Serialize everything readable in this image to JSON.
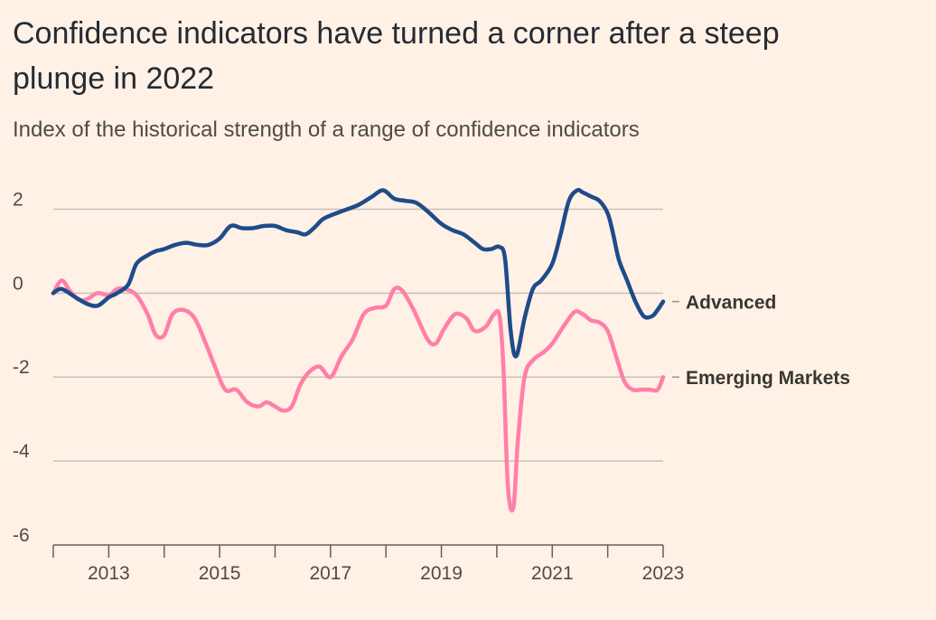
{
  "colors": {
    "background": "#fff1e5",
    "gridline": "#c8c0b8",
    "axis": "#66605c",
    "advanced": "#1f4b8a",
    "emerging": "#ff7faa"
  },
  "chart_data": {
    "type": "line",
    "title": "Confidence indicators have turned a corner after a steep plunge in 2022",
    "subtitle": "Index of the historical strength of a range of confidence indicators",
    "xlabel": "",
    "ylabel": "",
    "xlim": [
      2012.0,
      2023.0
    ],
    "ylim": [
      -6,
      3
    ],
    "y_ticks": [
      2,
      0,
      -2,
      -4,
      -6
    ],
    "x_ticks": [
      2013,
      2015,
      2017,
      2019,
      2021,
      2023
    ],
    "x_minor_ticks": [
      2012,
      2013,
      2014,
      2015,
      2016,
      2017,
      2018,
      2019,
      2020,
      2021,
      2022,
      2023
    ],
    "grid": true,
    "legend": "inline labels at right end of lines",
    "series": [
      {
        "name": "Advanced",
        "x": [
          2012.0,
          2012.15,
          2012.4,
          2012.6,
          2012.8,
          2013.0,
          2013.15,
          2013.35,
          2013.5,
          2013.7,
          2013.85,
          2014.0,
          2014.2,
          2014.4,
          2014.6,
          2014.8,
          2015.0,
          2015.2,
          2015.4,
          2015.6,
          2015.8,
          2016.0,
          2016.2,
          2016.4,
          2016.55,
          2016.7,
          2016.85,
          2017.0,
          2017.2,
          2017.5,
          2017.75,
          2017.95,
          2018.15,
          2018.35,
          2018.55,
          2018.75,
          2019.0,
          2019.2,
          2019.4,
          2019.6,
          2019.75,
          2019.9,
          2020.05,
          2020.15,
          2020.25,
          2020.35,
          2020.5,
          2020.65,
          2020.8,
          2021.0,
          2021.15,
          2021.3,
          2021.45,
          2021.55,
          2021.7,
          2021.85,
          2022.0,
          2022.1,
          2022.2,
          2022.35,
          2022.5,
          2022.65,
          2022.8,
          2022.9,
          2023.0
        ],
        "values": [
          0.0,
          0.1,
          -0.1,
          -0.25,
          -0.3,
          -0.1,
          0.0,
          0.2,
          0.7,
          0.9,
          1.0,
          1.05,
          1.15,
          1.2,
          1.15,
          1.15,
          1.3,
          1.6,
          1.55,
          1.55,
          1.6,
          1.6,
          1.5,
          1.45,
          1.4,
          1.55,
          1.75,
          1.85,
          1.95,
          2.1,
          2.3,
          2.45,
          2.25,
          2.2,
          2.15,
          1.95,
          1.65,
          1.5,
          1.4,
          1.2,
          1.05,
          1.05,
          1.1,
          0.8,
          -0.9,
          -1.5,
          -0.6,
          0.1,
          0.3,
          0.7,
          1.4,
          2.2,
          2.45,
          2.4,
          2.3,
          2.2,
          1.9,
          1.4,
          0.8,
          0.3,
          -0.2,
          -0.55,
          -0.55,
          -0.4,
          -0.2
        ]
      },
      {
        "name": "Emerging Markets",
        "x": [
          2012.0,
          2012.15,
          2012.3,
          2012.45,
          2012.6,
          2012.8,
          2013.0,
          2013.15,
          2013.3,
          2013.5,
          2013.7,
          2013.85,
          2014.0,
          2014.15,
          2014.35,
          2014.55,
          2014.75,
          2014.9,
          2015.1,
          2015.3,
          2015.5,
          2015.7,
          2015.85,
          2016.0,
          2016.15,
          2016.3,
          2016.45,
          2016.6,
          2016.8,
          2017.0,
          2017.2,
          2017.4,
          2017.6,
          2017.8,
          2018.0,
          2018.15,
          2018.3,
          2018.5,
          2018.75,
          2018.9,
          2019.05,
          2019.25,
          2019.45,
          2019.6,
          2019.8,
          2019.95,
          2020.05,
          2020.12,
          2020.2,
          2020.3,
          2020.38,
          2020.5,
          2020.65,
          2020.85,
          2021.0,
          2021.2,
          2021.4,
          2021.55,
          2021.7,
          2021.85,
          2022.0,
          2022.15,
          2022.3,
          2022.45,
          2022.6,
          2022.75,
          2022.9,
          2023.0
        ],
        "values": [
          0.0,
          0.3,
          0.05,
          -0.15,
          -0.15,
          0.0,
          -0.05,
          0.1,
          0.1,
          -0.05,
          -0.5,
          -1.0,
          -1.0,
          -0.5,
          -0.4,
          -0.6,
          -1.2,
          -1.7,
          -2.3,
          -2.3,
          -2.6,
          -2.7,
          -2.6,
          -2.7,
          -2.8,
          -2.7,
          -2.2,
          -1.9,
          -1.75,
          -2.0,
          -1.5,
          -1.1,
          -0.5,
          -0.35,
          -0.3,
          0.1,
          0.05,
          -0.4,
          -1.1,
          -1.2,
          -0.85,
          -0.5,
          -0.6,
          -0.9,
          -0.8,
          -0.5,
          -0.55,
          -1.8,
          -4.6,
          -5.1,
          -3.5,
          -2.0,
          -1.6,
          -1.4,
          -1.2,
          -0.8,
          -0.45,
          -0.5,
          -0.65,
          -0.7,
          -0.9,
          -1.5,
          -2.1,
          -2.3,
          -2.3,
          -2.3,
          -2.3,
          -2.0
        ]
      }
    ]
  }
}
